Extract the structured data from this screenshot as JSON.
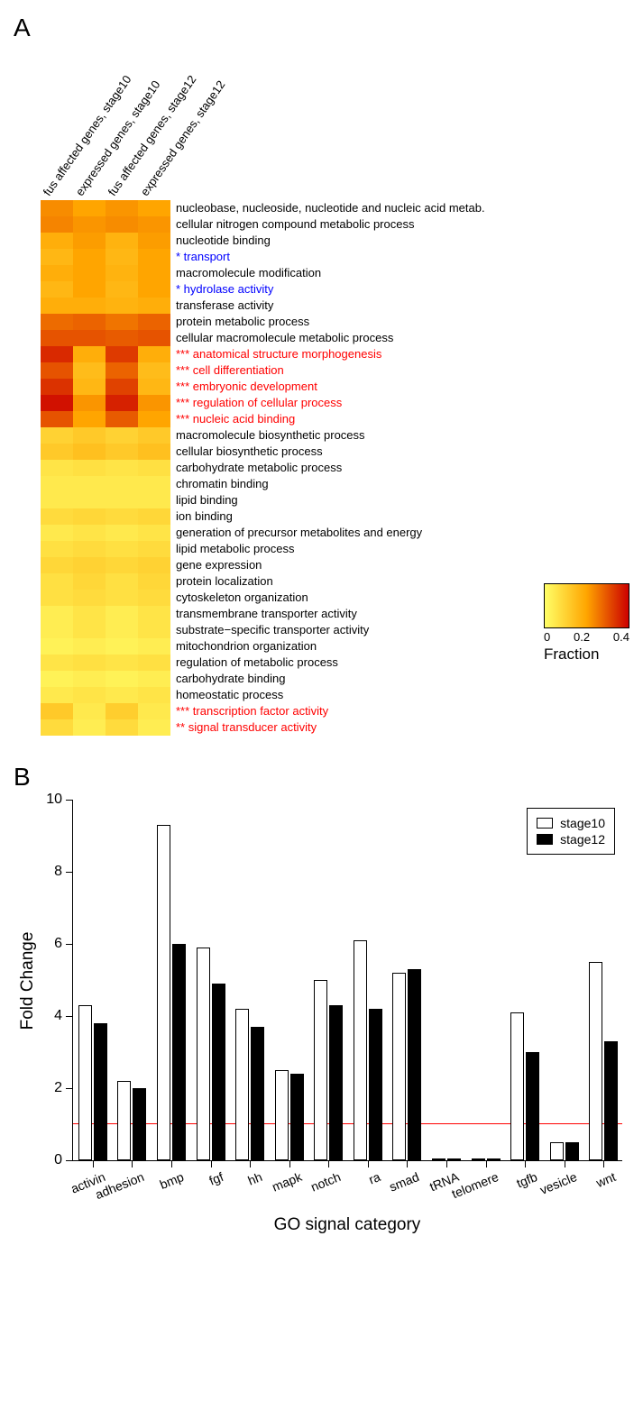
{
  "panelA": {
    "label": "A",
    "columns": [
      "fus affected genes, stage10",
      "expressed genes, stage10",
      "fus affected genes, stage12",
      "expressed genes, stage12"
    ],
    "colorscale": {
      "min": 0,
      "max": 0.4,
      "ticks": [
        "0",
        "0.2",
        "0.4"
      ],
      "label": "Fraction",
      "colors": [
        "#ffff66",
        "#ffcc33",
        "#ff9900",
        "#ff3300",
        "#cc0000"
      ]
    },
    "rows": [
      {
        "label": "nucleobase, nucleoside, nucleotide and nucleic acid metab.",
        "style": "black",
        "values": [
          0.23,
          0.2,
          0.22,
          0.2
        ]
      },
      {
        "label": "cellular nitrogen compound metabolic process",
        "style": "black",
        "values": [
          0.24,
          0.22,
          0.23,
          0.22
        ]
      },
      {
        "label": "nucleotide binding",
        "style": "black",
        "values": [
          0.18,
          0.21,
          0.17,
          0.21
        ]
      },
      {
        "label": "* transport",
        "style": "blue",
        "values": [
          0.16,
          0.2,
          0.16,
          0.2
        ]
      },
      {
        "label": "macromolecule modification",
        "style": "black",
        "values": [
          0.18,
          0.2,
          0.17,
          0.2
        ]
      },
      {
        "label": "* hydrolase activity",
        "style": "blue",
        "values": [
          0.16,
          0.2,
          0.16,
          0.2
        ]
      },
      {
        "label": "transferase activity",
        "style": "black",
        "values": [
          0.18,
          0.18,
          0.17,
          0.18
        ]
      },
      {
        "label": "protein metabolic process",
        "style": "black",
        "values": [
          0.27,
          0.28,
          0.26,
          0.28
        ]
      },
      {
        "label": "cellular macromolecule metabolic process",
        "style": "black",
        "values": [
          0.3,
          0.3,
          0.29,
          0.3
        ]
      },
      {
        "label": "*** anatomical structure morphogenesis",
        "style": "red",
        "values": [
          0.35,
          0.18,
          0.33,
          0.18
        ]
      },
      {
        "label": "*** cell differentiation",
        "style": "red",
        "values": [
          0.3,
          0.15,
          0.28,
          0.15
        ]
      },
      {
        "label": "*** embryonic development",
        "style": "red",
        "values": [
          0.34,
          0.16,
          0.32,
          0.16
        ]
      },
      {
        "label": "*** regulation of cellular process",
        "style": "red",
        "values": [
          0.38,
          0.22,
          0.36,
          0.22
        ]
      },
      {
        "label": "*** nucleic acid binding",
        "style": "red",
        "values": [
          0.3,
          0.2,
          0.29,
          0.2
        ]
      },
      {
        "label": "macromolecule biosynthetic process",
        "style": "black",
        "values": [
          0.1,
          0.12,
          0.1,
          0.12
        ]
      },
      {
        "label": "cellular biosynthetic process",
        "style": "black",
        "values": [
          0.12,
          0.14,
          0.12,
          0.14
        ]
      },
      {
        "label": "carbohydrate metabolic process",
        "style": "black",
        "values": [
          0.06,
          0.07,
          0.06,
          0.07
        ]
      },
      {
        "label": "chromatin binding",
        "style": "black",
        "values": [
          0.05,
          0.05,
          0.05,
          0.05
        ]
      },
      {
        "label": "lipid binding",
        "style": "black",
        "values": [
          0.05,
          0.05,
          0.05,
          0.05
        ]
      },
      {
        "label": "ion binding",
        "style": "black",
        "values": [
          0.08,
          0.09,
          0.08,
          0.09
        ]
      },
      {
        "label": "generation of precursor metabolites and energy",
        "style": "black",
        "values": [
          0.05,
          0.06,
          0.05,
          0.06
        ]
      },
      {
        "label": "lipid metabolic process",
        "style": "black",
        "values": [
          0.07,
          0.08,
          0.07,
          0.08
        ]
      },
      {
        "label": "gene expression",
        "style": "black",
        "values": [
          0.09,
          0.1,
          0.09,
          0.1
        ]
      },
      {
        "label": "protein localization",
        "style": "black",
        "values": [
          0.07,
          0.09,
          0.07,
          0.09
        ]
      },
      {
        "label": "cytoskeleton organization",
        "style": "black",
        "values": [
          0.07,
          0.08,
          0.07,
          0.08
        ]
      },
      {
        "label": "transmembrane transporter activity",
        "style": "black",
        "values": [
          0.04,
          0.06,
          0.04,
          0.06
        ]
      },
      {
        "label": "substrate−specific transporter activity",
        "style": "black",
        "values": [
          0.04,
          0.06,
          0.04,
          0.06
        ]
      },
      {
        "label": "mitochondrion organization",
        "style": "black",
        "values": [
          0.03,
          0.04,
          0.03,
          0.04
        ]
      },
      {
        "label": "regulation of metabolic process",
        "style": "black",
        "values": [
          0.06,
          0.07,
          0.06,
          0.07
        ]
      },
      {
        "label": "carbohydrate binding",
        "style": "black",
        "values": [
          0.03,
          0.04,
          0.03,
          0.04
        ]
      },
      {
        "label": "homeostatic process",
        "style": "black",
        "values": [
          0.05,
          0.06,
          0.05,
          0.06
        ]
      },
      {
        "label": "*** transcription factor activity",
        "style": "red",
        "values": [
          0.12,
          0.05,
          0.11,
          0.05
        ]
      },
      {
        "label": "** signal transducer activity",
        "style": "red",
        "values": [
          0.08,
          0.04,
          0.08,
          0.04
        ]
      }
    ]
  },
  "panelB": {
    "label": "B",
    "ylabel": "Fold Change",
    "xlabel": "GO signal category",
    "ymax": 10,
    "ytick_step": 2,
    "redline": 1,
    "legend": [
      {
        "label": "stage10",
        "fill": "white"
      },
      {
        "label": "stage12",
        "fill": "black"
      }
    ],
    "categories": [
      {
        "name": "activin",
        "stage10": 4.3,
        "stage12": 3.8
      },
      {
        "name": "adhesion",
        "stage10": 2.2,
        "stage12": 2.0
      },
      {
        "name": "bmp",
        "stage10": 9.3,
        "stage12": 6.0
      },
      {
        "name": "fgf",
        "stage10": 5.9,
        "stage12": 4.9
      },
      {
        "name": "hh",
        "stage10": 4.2,
        "stage12": 3.7
      },
      {
        "name": "mapk",
        "stage10": 2.5,
        "stage12": 2.4
      },
      {
        "name": "notch",
        "stage10": 5.0,
        "stage12": 4.3
      },
      {
        "name": "ra",
        "stage10": 6.1,
        "stage12": 4.2
      },
      {
        "name": "smad",
        "stage10": 5.2,
        "stage12": 5.3
      },
      {
        "name": "tRNA",
        "stage10": 0.05,
        "stage12": 0.05
      },
      {
        "name": "telomere",
        "stage10": 0.05,
        "stage12": 0.05
      },
      {
        "name": "tgfb",
        "stage10": 4.1,
        "stage12": 3.0
      },
      {
        "name": "vesicle",
        "stage10": 0.5,
        "stage12": 0.5
      },
      {
        "name": "wnt",
        "stage10": 5.5,
        "stage12": 3.3
      }
    ]
  }
}
